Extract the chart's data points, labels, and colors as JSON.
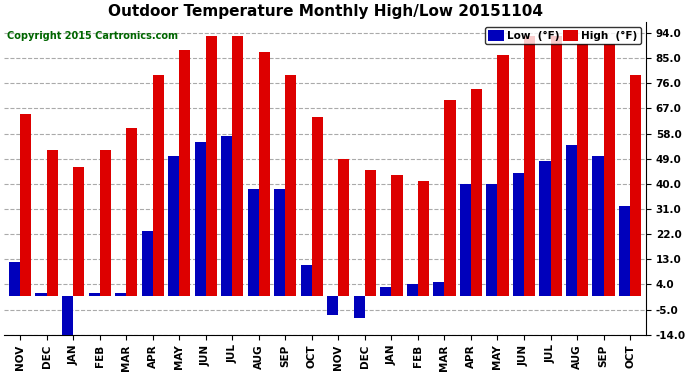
{
  "title": "Outdoor Temperature Monthly High/Low 20151104",
  "copyright": "Copyright 2015 Cartronics.com",
  "legend_low": "Low  (°F)",
  "legend_high": "High  (°F)",
  "months": [
    "NOV",
    "DEC",
    "JAN",
    "FEB",
    "MAR",
    "APR",
    "MAY",
    "JUN",
    "JUL",
    "AUG",
    "SEP",
    "OCT",
    "NOV",
    "DEC",
    "JAN",
    "FEB",
    "MAR",
    "APR",
    "MAY",
    "JUN",
    "JUL",
    "AUG",
    "SEP",
    "OCT"
  ],
  "high_values": [
    65,
    52,
    46,
    52,
    60,
    79,
    88,
    93,
    93,
    87,
    79,
    64,
    49,
    45,
    43,
    41,
    70,
    74,
    86,
    93,
    93,
    90,
    90,
    79
  ],
  "low_values": [
    12,
    1,
    -14,
    1,
    1,
    23,
    50,
    55,
    57,
    38,
    38,
    11,
    -7,
    -8,
    3,
    4,
    5,
    40,
    40,
    44,
    48,
    54,
    50,
    32
  ],
  "ylim": [
    -14,
    98
  ],
  "yticks": [
    -14.0,
    -5.0,
    4.0,
    13.0,
    22.0,
    31.0,
    40.0,
    49.0,
    58.0,
    67.0,
    76.0,
    85.0,
    94.0
  ],
  "low_color": "#0000bb",
  "high_color": "#dd0000",
  "bg_color": "#ffffff",
  "plot_bg": "#ffffff",
  "grid_color": "#aaaaaa",
  "title_fontsize": 11,
  "copyright_fontsize": 7,
  "bar_width": 0.42,
  "legend_low_color": "#0000bb",
  "legend_high_color": "#dd0000",
  "legend_bg": "#ffffff"
}
